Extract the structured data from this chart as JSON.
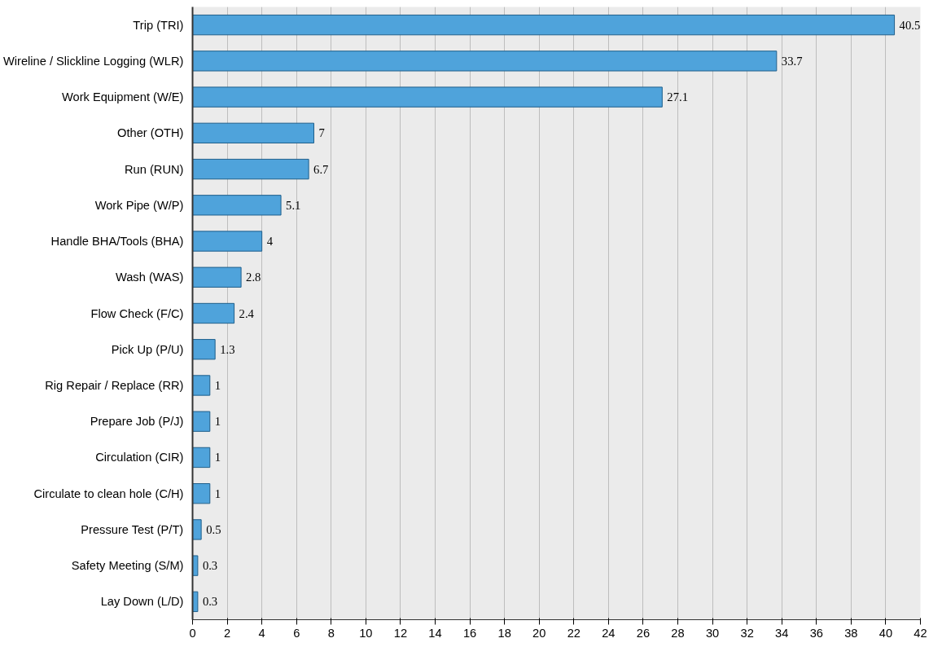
{
  "chart_data": {
    "type": "bar",
    "orientation": "horizontal",
    "categories": [
      "Trip (TRI)",
      "Wireline / Slickline Logging (WLR)",
      "Work Equipment (W/E)",
      "Other (OTH)",
      "Run (RUN)",
      "Work Pipe (W/P)",
      "Handle BHA/Tools (BHA)",
      "Wash (WAS)",
      "Flow Check (F/C)",
      "Pick Up (P/U)",
      "Rig Repair / Replace (RR)",
      "Prepare Job (P/J)",
      "Circulation (CIR)",
      "Circulate to clean hole (C/H)",
      "Pressure Test (P/T)",
      "Safety Meeting (S/M)",
      "Lay Down (L/D)"
    ],
    "values": [
      40.5,
      33.7,
      27.1,
      7,
      6.7,
      5.1,
      4,
      2.8,
      2.4,
      1.3,
      1,
      1,
      1,
      1,
      0.5,
      0.3,
      0.3
    ],
    "color": "#4fa3db",
    "xlim": [
      0,
      42
    ],
    "xticks": [
      0,
      2,
      4,
      6,
      8,
      10,
      12,
      14,
      16,
      18,
      20,
      22,
      24,
      26,
      28,
      30,
      32,
      34,
      36,
      38,
      40,
      42
    ],
    "grid": "x",
    "data_labels": true
  }
}
